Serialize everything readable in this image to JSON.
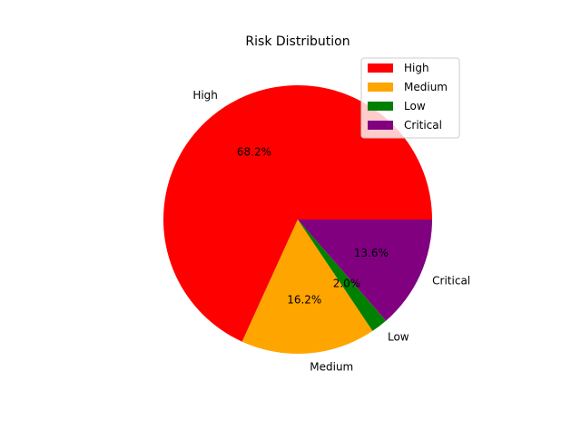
{
  "chart_data": {
    "type": "pie",
    "title": "Risk Distribution",
    "categories": [
      "High",
      "Medium",
      "Low",
      "Critical"
    ],
    "values": [
      68.2,
      16.2,
      2.0,
      13.6
    ],
    "percent_labels": [
      "68.2%",
      "16.2%",
      "2.0%",
      "13.6%"
    ],
    "colors": [
      "#ff0000",
      "#ffa500",
      "#008000",
      "#800080"
    ],
    "start_angle_deg": 0,
    "direction": "counterclockwise",
    "legend": {
      "placement": "top-right",
      "entries": [
        "High",
        "Medium",
        "Low",
        "Critical"
      ]
    }
  }
}
